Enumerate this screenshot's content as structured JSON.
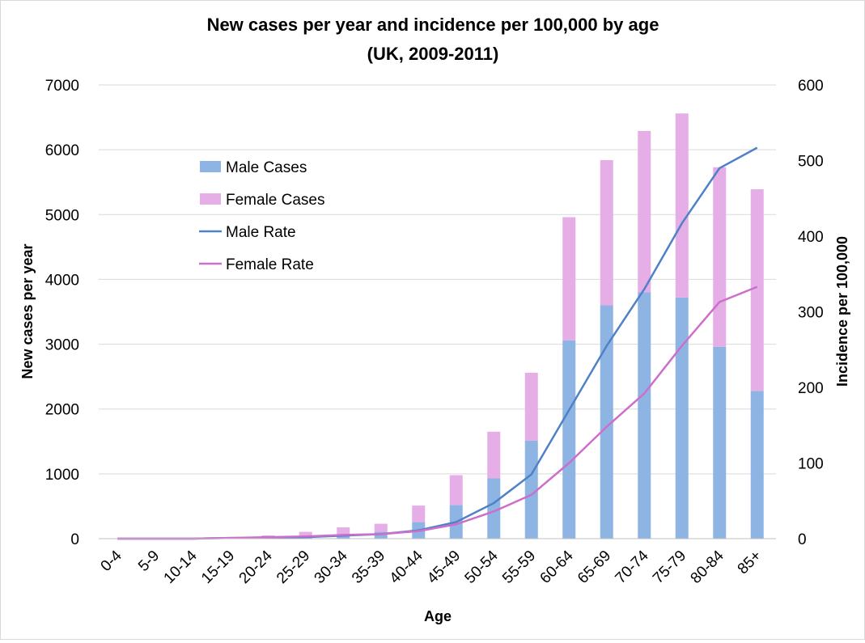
{
  "chart_data": {
    "type": "bar",
    "title": "New cases per year and incidence per 100,000 by age",
    "subtitle": "(UK, 2009-2011)",
    "xlabel": "Age",
    "ylabel": "New cases per year",
    "y2label": "Incidence per 100,000",
    "ylim": [
      0,
      7000
    ],
    "y2lim": [
      0,
      600
    ],
    "yticks": [
      "0",
      "1000",
      "2000",
      "3000",
      "4000",
      "5000",
      "6000",
      "7000"
    ],
    "y2ticks": [
      "0",
      "100",
      "200",
      "300",
      "400",
      "500",
      "600"
    ],
    "categories": [
      "0-4",
      "5-9",
      "10-14",
      "15-19",
      "20-24",
      "25-29",
      "30-34",
      "35-39",
      "40-44",
      "45-49",
      "50-54",
      "55-59",
      "60-64",
      "65-69",
      "70-74",
      "75-79",
      "80-84",
      "85+"
    ],
    "stacked_series": [
      {
        "name": "Male Cases",
        "color": "#8eb4e3",
        "values": [
          2,
          3,
          5,
          8,
          15,
          30,
          60,
          105,
          255,
          520,
          930,
          1510,
          3060,
          3600,
          3800,
          3720,
          2960,
          2280
        ]
      },
      {
        "name": "Female Cases",
        "color": "#e6aee6",
        "values": [
          2,
          3,
          6,
          12,
          35,
          75,
          115,
          125,
          255,
          460,
          720,
          1050,
          1900,
          2240,
          2490,
          2840,
          2770,
          3110
        ]
      }
    ],
    "line_series": [
      {
        "name": "Male Rate",
        "color": "#4f81c7",
        "axis": "right",
        "values": [
          0,
          0,
          0,
          1,
          1,
          2,
          4,
          6,
          11,
          22,
          47,
          85,
          170,
          255,
          330,
          417,
          490,
          517
        ]
      },
      {
        "name": "Female Rate",
        "color": "#cc6ecb",
        "axis": "right",
        "values": [
          0,
          0,
          0,
          1,
          2,
          3,
          5,
          6,
          10,
          19,
          36,
          58,
          100,
          148,
          192,
          255,
          313,
          333
        ]
      }
    ],
    "legend_position": "upper-left inside plot",
    "grid": true
  }
}
